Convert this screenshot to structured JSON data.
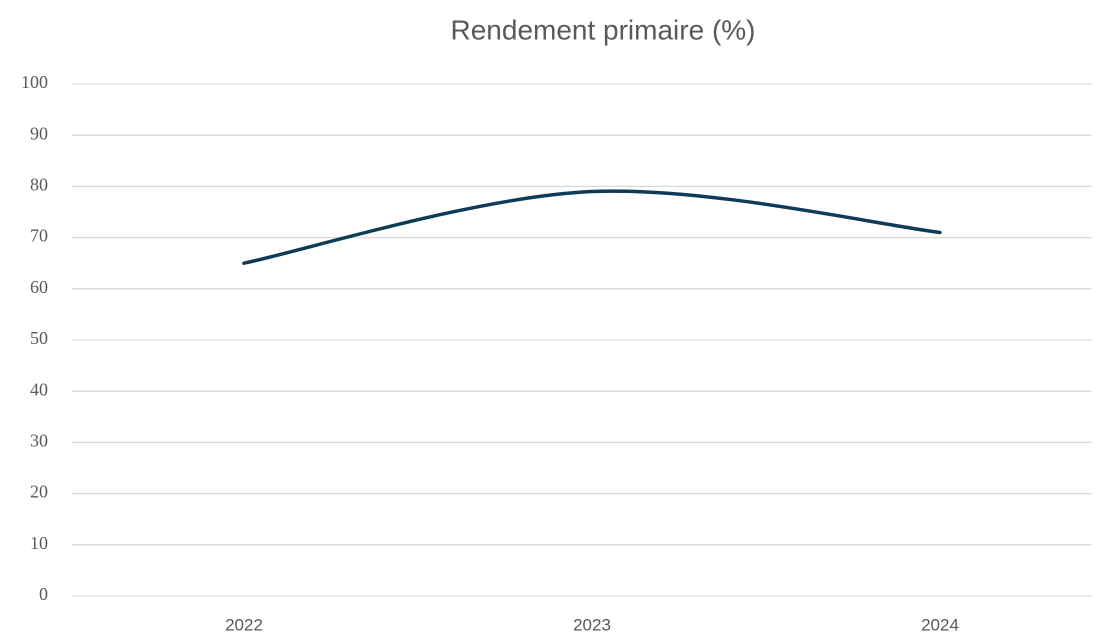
{
  "chart_data": {
    "type": "line",
    "title": "Rendement primaire (%)",
    "categories": [
      "2022",
      "2023",
      "2024"
    ],
    "values": [
      65,
      79,
      71
    ],
    "color": "#0e3b57",
    "smooth": true,
    "ylim": [
      0,
      100
    ],
    "yticks": [
      0,
      10,
      20,
      30,
      40,
      50,
      60,
      70,
      80,
      90,
      100
    ],
    "grid": true
  }
}
